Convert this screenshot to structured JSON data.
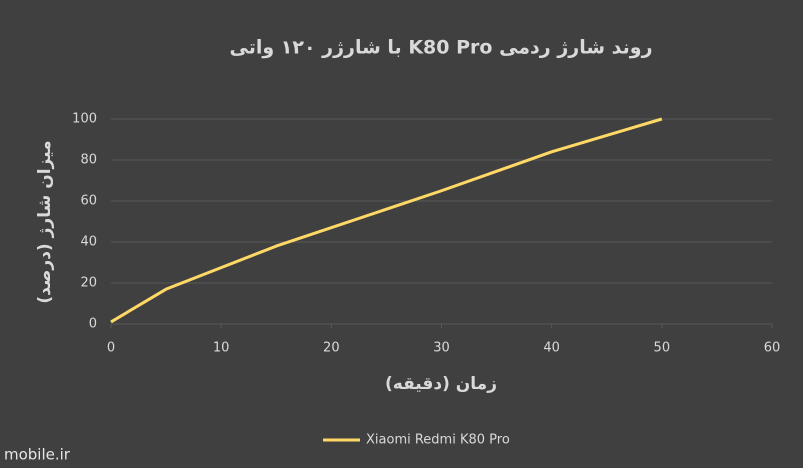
{
  "chart_data": {
    "type": "line",
    "title": "روند شارژ ردمی K80 Pro با شارژر ۱۲۰ واتی",
    "x_label": "زمان (دقیقه)",
    "y_label": "میزان شارژ (درصد)",
    "x": [
      0,
      5,
      15,
      30,
      40,
      50
    ],
    "series": [
      {
        "name": "Xiaomi Redmi K80 Pro",
        "color": "#ffd966",
        "values": [
          1,
          17,
          38,
          65,
          84,
          100
        ]
      }
    ],
    "xlim": [
      0,
      60
    ],
    "xticks": [
      0,
      10,
      20,
      30,
      40,
      50,
      60
    ],
    "ylim": [
      0,
      100
    ],
    "yticks": [
      0,
      20,
      40,
      60,
      80,
      100
    ],
    "grid": true,
    "legend": "bottom"
  },
  "watermark": "mobile.ir"
}
